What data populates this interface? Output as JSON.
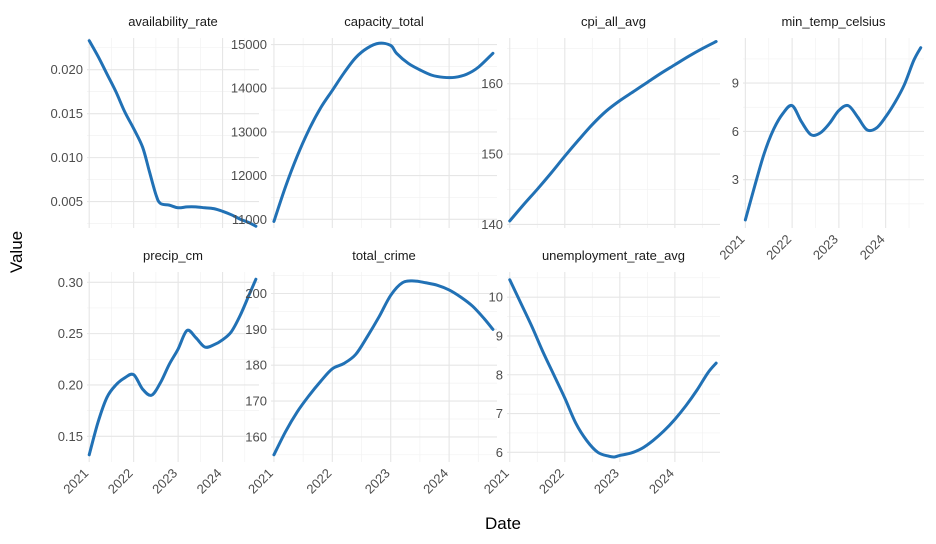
{
  "chart_data": {
    "type": "line",
    "layout": "facet-wrap",
    "xlabel": "Date",
    "ylabel": "Value",
    "x_tick_labels": [
      "2021",
      "2022",
      "2023",
      "2024"
    ],
    "line_color": "#2171b5",
    "grid": true,
    "panels": [
      {
        "name": "availability_rate",
        "ylim": [
          0.002,
          0.0236
        ],
        "yticks": [
          0.005,
          0.01,
          0.015,
          0.02
        ],
        "ytick_labels": [
          "0.005",
          "0.010",
          "0.015",
          "0.020"
        ],
        "x": [
          2021.0,
          2021.2,
          2021.4,
          2021.6,
          2021.8,
          2022.0,
          2022.2,
          2022.35,
          2022.5,
          2022.6,
          2022.8,
          2023.0,
          2023.2,
          2023.4,
          2023.6,
          2023.8,
          2024.0,
          2024.2,
          2024.4,
          2024.6,
          2024.75
        ],
        "y": [
          0.0233,
          0.0215,
          0.0195,
          0.0175,
          0.0152,
          0.0133,
          0.0112,
          0.0085,
          0.0058,
          0.0048,
          0.0046,
          0.0043,
          0.0044,
          0.0044,
          0.0043,
          0.0042,
          0.0039,
          0.0035,
          0.003,
          0.0026,
          0.0022
        ]
      },
      {
        "name": "capacity_total",
        "ylim": [
          10800,
          15150
        ],
        "yticks": [
          11000,
          12000,
          13000,
          14000,
          15000
        ],
        "ytick_labels": [
          "11000",
          "12000",
          "13000",
          "14000",
          "15000"
        ],
        "x": [
          2021.0,
          2021.2,
          2021.4,
          2021.6,
          2021.8,
          2022.0,
          2022.2,
          2022.4,
          2022.6,
          2022.8,
          2023.0,
          2023.1,
          2023.3,
          2023.5,
          2023.7,
          2023.9,
          2024.1,
          2024.3,
          2024.5,
          2024.75
        ],
        "y": [
          10950,
          11750,
          12450,
          13050,
          13550,
          13950,
          14350,
          14700,
          14920,
          15030,
          14980,
          14800,
          14570,
          14420,
          14300,
          14250,
          14250,
          14320,
          14480,
          14800
        ]
      },
      {
        "name": "cpi_all_avg",
        "ylim": [
          139.5,
          166.5
        ],
        "yticks": [
          140,
          150,
          160
        ],
        "ytick_labels": [
          "140",
          "150",
          "160"
        ],
        "x": [
          2021.0,
          2021.25,
          2021.5,
          2021.75,
          2022.0,
          2022.25,
          2022.5,
          2022.75,
          2023.0,
          2023.25,
          2023.5,
          2023.75,
          2024.0,
          2024.25,
          2024.5,
          2024.75
        ],
        "y": [
          140.5,
          142.8,
          145.0,
          147.3,
          149.7,
          152.0,
          154.2,
          156.1,
          157.6,
          158.9,
          160.2,
          161.5,
          162.7,
          163.9,
          165.0,
          166.0
        ]
      },
      {
        "name": "min_temp_celsius",
        "ylim": [
          0,
          11.8
        ],
        "yticks": [
          3,
          6,
          9
        ],
        "ytick_labels": [
          "3",
          "6",
          "9"
        ],
        "x": [
          2021.0,
          2021.2,
          2021.4,
          2021.6,
          2021.8,
          2022.0,
          2022.2,
          2022.4,
          2022.6,
          2022.8,
          2023.0,
          2023.2,
          2023.4,
          2023.6,
          2023.8,
          2024.0,
          2024.2,
          2024.4,
          2024.6,
          2024.75
        ],
        "y": [
          0.5,
          2.6,
          4.6,
          6.1,
          7.1,
          7.6,
          6.6,
          5.8,
          5.9,
          6.5,
          7.3,
          7.6,
          6.9,
          6.1,
          6.2,
          6.9,
          7.8,
          8.9,
          10.4,
          11.2
        ]
      },
      {
        "name": "precip_cm",
        "ylim": [
          0.125,
          0.31
        ],
        "yticks": [
          0.15,
          0.2,
          0.25,
          0.3
        ],
        "ytick_labels": [
          "0.15",
          "0.20",
          "0.25",
          "0.30"
        ],
        "x": [
          2021.0,
          2021.2,
          2021.4,
          2021.6,
          2021.8,
          2022.0,
          2022.2,
          2022.4,
          2022.6,
          2022.8,
          2023.0,
          2023.2,
          2023.4,
          2023.6,
          2023.8,
          2024.0,
          2024.2,
          2024.4,
          2024.6,
          2024.75
        ],
        "y": [
          0.132,
          0.164,
          0.188,
          0.2,
          0.207,
          0.21,
          0.196,
          0.19,
          0.202,
          0.22,
          0.235,
          0.253,
          0.246,
          0.237,
          0.239,
          0.244,
          0.252,
          0.268,
          0.288,
          0.303
        ]
      },
      {
        "name": "total_crime",
        "ylim": [
          153,
          206
        ],
        "yticks": [
          160,
          170,
          180,
          190,
          200
        ],
        "ytick_labels": [
          "160",
          "170",
          "180",
          "190",
          "200"
        ],
        "x": [
          2021.0,
          2021.2,
          2021.4,
          2021.6,
          2021.8,
          2022.0,
          2022.2,
          2022.4,
          2022.6,
          2022.8,
          2023.0,
          2023.2,
          2023.4,
          2023.6,
          2023.8,
          2024.0,
          2024.2,
          2024.4,
          2024.6,
          2024.75
        ],
        "y": [
          155,
          161.5,
          167,
          171.5,
          175.5,
          179,
          180.5,
          183,
          188,
          193.5,
          199.5,
          203,
          203.5,
          203,
          202.3,
          201,
          199,
          196.5,
          193,
          190
        ]
      },
      {
        "name": "unemployment_rate_avg",
        "ylim": [
          5.75,
          10.65
        ],
        "yticks": [
          6,
          7,
          8,
          9,
          10
        ],
        "ytick_labels": [
          "6",
          "7",
          "8",
          "9",
          "10"
        ],
        "x": [
          2021.0,
          2021.2,
          2021.4,
          2021.6,
          2021.8,
          2022.0,
          2022.2,
          2022.4,
          2022.6,
          2022.8,
          2022.9,
          2023.0,
          2023.2,
          2023.4,
          2023.6,
          2023.8,
          2024.0,
          2024.2,
          2024.4,
          2024.6,
          2024.75
        ],
        "y": [
          10.45,
          9.85,
          9.25,
          8.6,
          8.0,
          7.4,
          6.75,
          6.3,
          6.0,
          5.9,
          5.88,
          5.92,
          5.98,
          6.1,
          6.3,
          6.55,
          6.85,
          7.2,
          7.6,
          8.05,
          8.3
        ]
      }
    ]
  }
}
